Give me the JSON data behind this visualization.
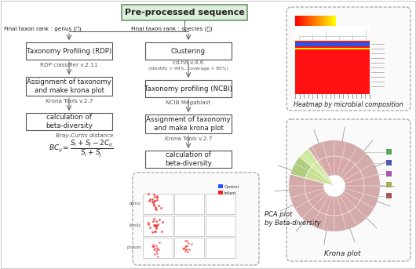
{
  "title": "Pre-processed sequence",
  "bg_color": "#ffffff",
  "title_box_fill": "#ddeedd",
  "title_box_border": "#6a9a6a",
  "arrow_color": "#555555",
  "text_color": "#222222",
  "note_color": "#555555",
  "box_fill": "#ffffff",
  "box_border": "#555555",
  "left_branch_label": "Final taxon rank : genus (속)",
  "right_branch_label": "Final taxon rank : species (종)",
  "boxes_left": [
    "Taxonomy Profiling (RDP)",
    "Assignment of taxonomy\nand make krona plot",
    "calculation of\nbeta-diversity"
  ],
  "boxes_right": [
    "Clustering",
    "Taxonomy profiling (NCBI)",
    "Assignment of taxonomy\nand make krona plot",
    "calculation of\nbeta-diversity"
  ],
  "note_l1": "RDP classifier v.2.11",
  "note_l2": "Krona Tools v.2.7",
  "note_l3": "Bray-Curtis distance",
  "note_r1a": "cd-hit v.4.6",
  "note_r1b": "(identify > 99%, coverage > 80%)",
  "note_r2": "NCIB Megablast",
  "note_r3": "Krona Tools v.2.7",
  "formula": "$BC_{ij} = \\dfrac{S_i+S_j-2C_{ij}}{S_i+S_j}$",
  "heatmap_label": "Heatmap by microbial composition",
  "pca_label": "PCA plot\nby Beta-diversity",
  "krona_label": "Krona plot",
  "dashed_border": "#999999"
}
